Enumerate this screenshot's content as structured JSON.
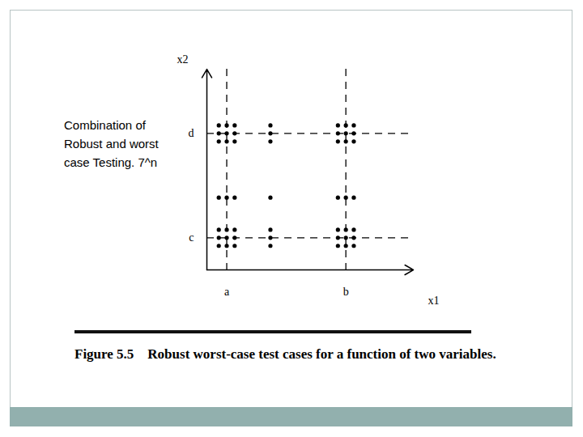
{
  "chart_data": {
    "type": "scatter",
    "title": "Figure 5.5    Robust worst-case test cases for a function of two variables.",
    "annotations": [
      "Combination of Robust and worst case Testing. 7^n"
    ],
    "xlabel": "x1",
    "ylabel": "x2",
    "xlim": [
      0,
      26
    ],
    "ylim": [
      0,
      25
    ],
    "xticks": [
      {
        "value": 2.5,
        "label": "a"
      },
      {
        "value": 17.5,
        "label": "b"
      }
    ],
    "yticks": [
      {
        "value": 4,
        "label": "c"
      },
      {
        "value": 17,
        "label": "d"
      }
    ],
    "grid": true,
    "marker": "circle",
    "color": "#000000",
    "x": [
      1.5,
      2.5,
      3.5,
      8,
      16.5,
      17.5,
      18.5,
      1.5,
      2.5,
      3.5,
      8,
      16.5,
      17.5,
      18.5,
      1.5,
      2.5,
      3.5,
      8,
      16.5,
      17.5,
      18.5,
      1.5,
      2.5,
      3.5,
      8,
      16.5,
      17.5,
      18.5,
      1.5,
      2.5,
      3.5,
      8,
      16.5,
      17.5,
      18.5,
      1.5,
      2.5,
      3.5,
      8,
      16.5,
      17.5,
      18.5,
      1.5,
      2.5,
      3.5,
      8,
      16.5,
      17.5,
      18.5
    ],
    "y": [
      3,
      3,
      3,
      3,
      3,
      3,
      3,
      4,
      4,
      4,
      4,
      4,
      4,
      4,
      5,
      5,
      5,
      5,
      5,
      5,
      5,
      9,
      9,
      9,
      9,
      9,
      9,
      9,
      16,
      16,
      16,
      16,
      16,
      16,
      16,
      17,
      17,
      17,
      17,
      17,
      17,
      17,
      18,
      18,
      18,
      18,
      18,
      18,
      18
    ]
  }
}
